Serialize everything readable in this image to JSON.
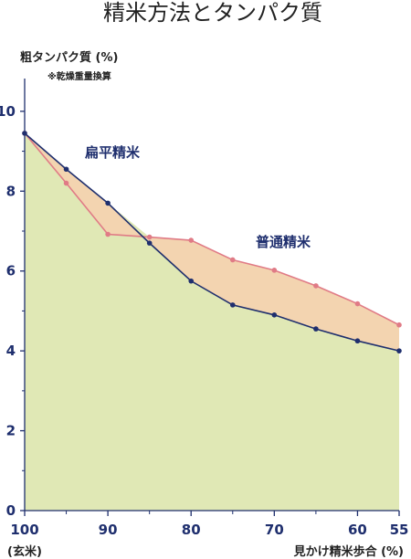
{
  "chart_data": {
    "type": "area",
    "title": "精米方法とタンパク質",
    "ylabel": "粗タンパク質 (%)",
    "ylabel_note": "※乾燥重量換算",
    "xlabel": "見かけ精米歩合 (%)",
    "x_end_label": "(玄米)",
    "xlim": [
      100,
      55
    ],
    "ylim": [
      0,
      10.5
    ],
    "x_ticks": [
      100,
      90,
      80,
      70,
      60,
      55
    ],
    "y_ticks": [
      0,
      2,
      4,
      6,
      8,
      10
    ],
    "series": [
      {
        "name": "扁平精米",
        "color": "#1f2f6e",
        "fill": "#c9e2ec",
        "x": [
          100,
          95,
          90,
          85,
          80,
          75,
          70,
          65,
          60,
          55
        ],
        "y": [
          9.45,
          8.55,
          7.7,
          6.7,
          5.75,
          5.15,
          4.9,
          4.55,
          4.25,
          4.0
        ]
      },
      {
        "name": "普通精米",
        "color": "#e07b86",
        "fill": "#f3d4b0",
        "x": [
          100,
          95,
          90,
          85,
          80,
          75,
          70,
          65,
          60,
          55
        ],
        "y": [
          9.45,
          8.2,
          6.92,
          6.85,
          6.77,
          6.28,
          6.02,
          5.63,
          5.18,
          4.65
        ]
      }
    ],
    "base_fill": "#e0e8b5",
    "axis_color": "#1f2f6e"
  }
}
